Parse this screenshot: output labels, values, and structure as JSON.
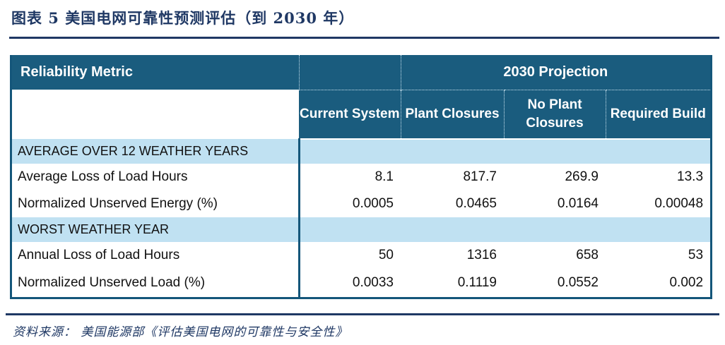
{
  "figure": {
    "title": "图表 5  美国电网可靠性预测评估（到 2030 年）",
    "source": "资料来源： 美国能源部《评估美国电网的可靠性与安全性》"
  },
  "colors": {
    "accent_navy": "#1F3864",
    "header_bg": "#1A5C7E",
    "header_text": "#FFFFFF",
    "section_bg": "#C0E1F2",
    "table_border": "#14567A",
    "body_text": "#111111"
  },
  "table": {
    "header": {
      "metric_label": "Reliability Metric",
      "projection_label": "2030 Projection",
      "col_current": "Current System",
      "col_plant_closures": "Plant Closures",
      "col_no_plant_closures": "No Plant Closures",
      "col_required_build": "Required Build"
    },
    "sections": [
      {
        "label": "AVERAGE OVER 12 WEATHER YEARS",
        "rows": [
          {
            "label": "Average Loss of Load Hours",
            "values": [
              "8.1",
              "817.7",
              "269.9",
              "13.3"
            ]
          },
          {
            "label": "Normalized Unserved Energy (%)",
            "values": [
              "0.0005",
              "0.0465",
              "0.0164",
              "0.00048"
            ]
          }
        ]
      },
      {
        "label": "WORST WEATHER YEAR",
        "rows": [
          {
            "label": "Annual Loss of Load Hours",
            "values": [
              "50",
              "1316",
              "658",
              "53"
            ]
          },
          {
            "label": "Normalized Unserved Load (%)",
            "values": [
              "0.0033",
              "0.1119",
              "0.0552",
              "0.002"
            ]
          }
        ]
      }
    ]
  }
}
